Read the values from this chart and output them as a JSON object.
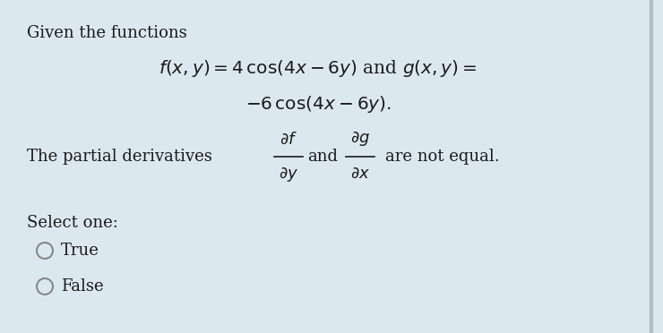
{
  "background_color": "#dce8f0",
  "text_color": "#1a1a1a",
  "title_text": "Given the functions",
  "formula_line1": "$f(x, y) = 4\\,\\mathrm{cos}(4x - 6y)$ and $g(x, y) =$",
  "formula_line2": "$-6\\,\\mathrm{cos}(4x - 6y).$",
  "partial_deriv_text_before": "The partial derivatives",
  "partial_deriv_middle": "and",
  "partial_deriv_text_after": "are not equal.",
  "select_one_label": "Select one:",
  "option_true": "True",
  "option_false": "False",
  "font_size_title": 13,
  "font_size_formula": 14.5,
  "font_size_body": 13,
  "font_size_options": 13,
  "circle_edge_color": "#888888",
  "circle_face_color": "#dce8f0"
}
